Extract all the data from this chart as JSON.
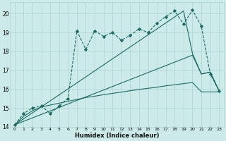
{
  "xlabel": "Humidex (Indice chaleur)",
  "xlim": [
    -0.5,
    23.5
  ],
  "ylim": [
    14,
    20.6
  ],
  "xticks": [
    0,
    1,
    2,
    3,
    4,
    5,
    6,
    7,
    8,
    9,
    10,
    11,
    12,
    13,
    14,
    15,
    16,
    17,
    18,
    19,
    20,
    21,
    22,
    23
  ],
  "yticks": [
    14,
    15,
    16,
    17,
    18,
    19,
    20
  ],
  "bg_color": "#cceae7",
  "line_color": "#1a6b65",
  "grid_color": "#aed4d0",
  "zigzag_x": [
    0,
    1,
    2,
    3,
    4,
    5,
    6,
    7,
    8,
    9,
    10,
    11,
    12,
    13,
    14,
    15,
    16,
    17,
    18,
    19,
    20,
    21,
    22,
    23
  ],
  "zigzag_y": [
    14.1,
    14.7,
    15.0,
    15.1,
    14.7,
    15.1,
    15.5,
    19.1,
    18.1,
    19.1,
    18.8,
    19.0,
    18.6,
    18.85,
    19.2,
    19.0,
    19.5,
    19.85,
    20.15,
    19.45,
    20.2,
    19.35,
    16.8,
    15.9
  ],
  "diag_high_x": [
    0,
    19,
    20,
    21,
    22,
    23
  ],
  "diag_high_y": [
    14.1,
    20.15,
    17.9,
    16.8,
    16.9,
    15.9
  ],
  "diag_mid_x": [
    0,
    20,
    21,
    22,
    23
  ],
  "diag_mid_y": [
    14.1,
    17.8,
    16.8,
    16.9,
    15.9
  ],
  "flat_x": [
    0,
    1,
    2,
    3,
    4,
    5,
    6,
    7,
    8,
    9,
    10,
    11,
    12,
    13,
    14,
    15,
    16,
    17,
    18,
    19,
    20,
    21,
    22,
    23
  ],
  "flat_y": [
    14.1,
    14.55,
    14.85,
    15.05,
    15.15,
    15.25,
    15.35,
    15.45,
    15.55,
    15.62,
    15.7,
    15.77,
    15.84,
    15.91,
    15.98,
    16.04,
    16.1,
    16.17,
    16.23,
    16.29,
    16.35,
    15.85,
    15.85,
    15.85
  ]
}
